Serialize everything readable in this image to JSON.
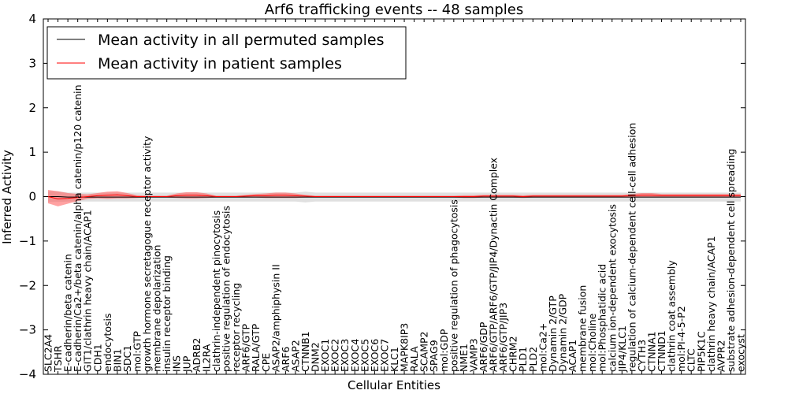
{
  "chart_data": {
    "type": "line",
    "title": "Arf6 trafficking events -- 48 samples",
    "xlabel": "Cellular Entities",
    "ylabel": "Inferred Activity",
    "ylim": [
      -4,
      4
    ],
    "yticks": [
      -4,
      -3,
      -2,
      -1,
      0,
      1,
      2,
      3,
      4
    ],
    "grid": false,
    "legend_position": "top-left",
    "categories": [
      "SLC2A4",
      "TSHR",
      "E-cadherin/beta catenin",
      "E-cadherin/Ca2+/beta catenin/alpha catenin/p120 catenin",
      "GIT1/clathrin heavy chain/ACAP1",
      "CDH1",
      "endocytosis",
      "BIN1",
      "SDC1",
      "mol:GTP",
      "growth hormone secretagogue receptor activity",
      "membrane depolarization",
      "insulin receptor binding",
      "INS",
      "JUP",
      "ADRB2",
      "IL2RA",
      "clathrin-independent pinocytosis",
      "positive regulation of endocytosis",
      "receptor recycling",
      "ARF6/GTP",
      "RALA/GTP",
      "CPE",
      "ASAP2/amphiphysin II",
      "ARF6",
      "ASAP2",
      "CTNNB1",
      "DNM2",
      "EXOC1",
      "EXOC2",
      "EXOC3",
      "EXOC4",
      "EXOC5",
      "EXOC6",
      "EXOC7",
      "KLC1",
      "MAPK8IP3",
      "RALA",
      "SCAMP2",
      "SPAG9",
      "mol:GDP",
      "positive regulation of phagocytosis",
      "NME1",
      "VAMP3",
      "ARF6/GDP",
      "ARF6/GTP/ARF6/GTP/JIP4/Dynactin Complex",
      "ARF6/GTP/JIP3",
      "CHRM2",
      "PLD1",
      "PLD2",
      "mol:Ca2+",
      "Dynamin 2/GTP",
      "Dynamin 2/GDP",
      "ACAP1",
      "membrane fusion",
      "mol:Choline",
      "mol:Phosphatidic acid",
      "calcium ion-dependent exocytosis",
      "JIP4/KLC1",
      "regulation of calcium-dependent cell-cell adhesion",
      "CYTH3",
      "CTNNA1",
      "CTNND1",
      "clathrin coat assembly",
      "mol:PI-4-5-P2",
      "CLTC",
      "PIP5K1C",
      "clathrin heavy chain/ACAP1",
      "AVPR2",
      "substrate adhesion-dependent cell spreading",
      "exocyst"
    ],
    "series": [
      {
        "name": "Mean activity in all permuted samples",
        "color": "#000000",
        "values": [
          0,
          0,
          -0.01,
          -0.01,
          -0.01,
          -0.01,
          -0.01,
          -0.01,
          -0.01,
          -0.01,
          -0.01,
          -0.01,
          -0.01,
          -0.01,
          -0.01,
          -0.01,
          -0.01,
          -0.01,
          -0.01,
          -0.01,
          -0.01,
          -0.01,
          -0.01,
          -0.01,
          -0.01,
          -0.01,
          -0.01,
          -0.01,
          -0.01,
          -0.01,
          -0.01,
          -0.01,
          -0.01,
          -0.01,
          -0.01,
          -0.01,
          -0.01,
          -0.01,
          -0.01,
          -0.01,
          -0.01,
          -0.01,
          -0.01,
          -0.01,
          -0.01,
          -0.01,
          -0.01,
          -0.01,
          -0.01,
          -0.01,
          -0.01,
          -0.01,
          -0.01,
          -0.01,
          -0.01,
          -0.01,
          -0.01,
          -0.01,
          -0.01,
          -0.01,
          -0.01,
          -0.01,
          -0.01,
          -0.01,
          -0.01,
          -0.01,
          -0.01,
          -0.01,
          -0.01,
          -0.01,
          -0.01
        ],
        "band_half_width": [
          0.12,
          0.12,
          0.1,
          0.1,
          0.1,
          0.1,
          0.1,
          0.1,
          0.1,
          0.1,
          0.1,
          0.1,
          0.1,
          0.1,
          0.1,
          0.1,
          0.1,
          0.1,
          0.1,
          0.1,
          0.1,
          0.1,
          0.1,
          0.1,
          0.1,
          0.1,
          0.12,
          0.1,
          0.1,
          0.1,
          0.1,
          0.1,
          0.1,
          0.1,
          0.1,
          0.1,
          0.1,
          0.1,
          0.1,
          0.1,
          0.1,
          0.1,
          0.1,
          0.1,
          0.1,
          0.1,
          0.1,
          0.1,
          0.1,
          0.1,
          0.1,
          0.1,
          0.1,
          0.1,
          0.1,
          0.1,
          0.1,
          0.1,
          0.1,
          0.1,
          0.1,
          0.1,
          0.1,
          0.1,
          0.1,
          0.1,
          0.1,
          0.1,
          0.1,
          0.1,
          0.1
        ],
        "band_color": "#bbbbbb"
      },
      {
        "name": "Mean activity in patient samples",
        "color": "#ff0000",
        "values": [
          0.0,
          -0.05,
          -0.04,
          -0.02,
          0.0,
          0.02,
          0.03,
          0.04,
          0.02,
          0.0,
          0.0,
          0.0,
          0.0,
          0.02,
          0.03,
          0.03,
          0.02,
          0.0,
          0.0,
          0.0,
          0.01,
          0.02,
          0.02,
          0.03,
          0.03,
          0.02,
          0.01,
          0.0,
          0.0,
          0.0,
          0.0,
          0.0,
          0.0,
          0.0,
          0.0,
          0.0,
          0.0,
          0.0,
          0.0,
          0.0,
          0.0,
          0.0,
          0.0,
          0.0,
          0.01,
          0.01,
          0.01,
          0.01,
          0.0,
          0.01,
          0.01,
          0.01,
          0.01,
          0.01,
          0.01,
          0.01,
          0.01,
          0.01,
          0.01,
          0.02,
          0.03,
          0.03,
          0.02,
          0.02,
          0.02,
          0.02,
          0.02,
          0.02,
          0.02,
          0.02,
          0.02
        ],
        "band_half_width": [
          0.15,
          0.17,
          0.12,
          0.08,
          0.05,
          0.06,
          0.08,
          0.08,
          0.06,
          0.03,
          0.02,
          0.02,
          0.02,
          0.05,
          0.07,
          0.07,
          0.05,
          0.02,
          0.02,
          0.02,
          0.03,
          0.04,
          0.05,
          0.06,
          0.06,
          0.05,
          0.03,
          0.02,
          0.02,
          0.02,
          0.02,
          0.02,
          0.02,
          0.02,
          0.02,
          0.02,
          0.02,
          0.02,
          0.02,
          0.02,
          0.02,
          0.02,
          0.03,
          0.03,
          0.03,
          0.03,
          0.03,
          0.03,
          0.03,
          0.03,
          0.03,
          0.03,
          0.03,
          0.03,
          0.03,
          0.03,
          0.03,
          0.03,
          0.03,
          0.04,
          0.05,
          0.05,
          0.04,
          0.04,
          0.04,
          0.04,
          0.04,
          0.04,
          0.04,
          0.04,
          0.04
        ],
        "band_color": "#ff5555"
      }
    ]
  }
}
